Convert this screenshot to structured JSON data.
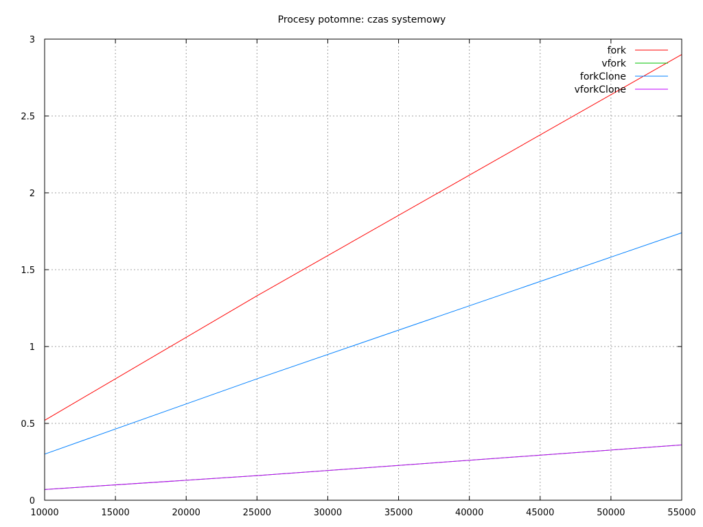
{
  "chart_data": {
    "type": "line",
    "title": "Procesy potomne: czas systemowy",
    "xlabel": "",
    "ylabel": "",
    "xlim": [
      10000,
      55000
    ],
    "ylim": [
      0,
      3
    ],
    "xticks": [
      10000,
      15000,
      20000,
      25000,
      30000,
      35000,
      40000,
      45000,
      50000,
      55000
    ],
    "yticks": [
      0,
      0.5,
      1,
      1.5,
      2,
      2.5,
      3
    ],
    "grid": true,
    "legend_position": "top-right",
    "x": [
      10000,
      25000,
      55000
    ],
    "series": [
      {
        "name": "fork",
        "color": "#ff0000",
        "values": [
          0.52,
          1.33,
          2.9
        ]
      },
      {
        "name": "vfork",
        "color": "#00c000",
        "values": [
          0.07,
          0.16,
          0.36
        ]
      },
      {
        "name": "forkClone",
        "color": "#0080ff",
        "values": [
          0.3,
          0.79,
          1.74
        ]
      },
      {
        "name": "vforkClone",
        "color": "#c000ff",
        "values": [
          0.07,
          0.16,
          0.36
        ]
      }
    ]
  }
}
